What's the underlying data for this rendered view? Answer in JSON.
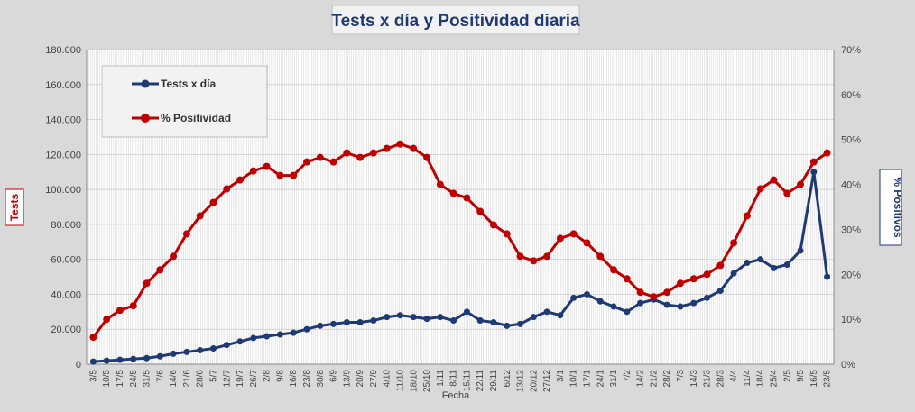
{
  "chart_data": {
    "type": "line",
    "title": "Tests x día y Positividad  diaria",
    "xlabel": "Fecha",
    "ylabel_left": "Tests",
    "ylabel_right": "% Positivos",
    "ylim_left": [
      0,
      180000
    ],
    "ylim_right": [
      0,
      70
    ],
    "y_ticks_left": [
      "0",
      "20.000",
      "40.000",
      "60.000",
      "80.000",
      "100.000",
      "120.000",
      "140.000",
      "160.000",
      "180.000"
    ],
    "y_ticks_right": [
      "0%",
      "10%",
      "20%",
      "30%",
      "40%",
      "50%",
      "60%",
      "70%"
    ],
    "x_tick_labels": [
      "3/5",
      "10/5",
      "17/5",
      "24/5",
      "31/5",
      "7/6",
      "14/6",
      "21/6",
      "28/6",
      "5/7",
      "12/7",
      "19/7",
      "26/7",
      "2/8",
      "9/8",
      "16/8",
      "23/8",
      "30/8",
      "6/9",
      "13/9",
      "20/9",
      "27/9",
      "4/10",
      "11/10",
      "18/10",
      "25/10",
      "1/11",
      "8/11",
      "15/11",
      "22/11",
      "29/11",
      "6/12",
      "13/12",
      "20/12",
      "27/12",
      "3/1",
      "10/1",
      "17/1",
      "24/1",
      "31/1",
      "7/2",
      "14/2",
      "21/2",
      "28/2",
      "7/3",
      "14/3",
      "21/3",
      "28/3",
      "4/4",
      "11/4",
      "18/4",
      "25/4",
      "2/5",
      "9/5",
      "16/5",
      "23/5"
    ],
    "legend_placement": "top-left",
    "grid": true,
    "series": [
      {
        "name": "Tests x día",
        "axis": "left",
        "color": "#1f3a73",
        "x": [
          "3/5",
          "10/5",
          "17/5",
          "24/5",
          "31/5",
          "7/6",
          "14/6",
          "21/6",
          "28/6",
          "5/7",
          "12/7",
          "19/7",
          "26/7",
          "2/8",
          "9/8",
          "16/8",
          "23/8",
          "30/8",
          "6/9",
          "13/9",
          "20/9",
          "27/9",
          "4/10",
          "11/10",
          "18/10",
          "25/10",
          "1/11",
          "8/11",
          "15/11",
          "22/11",
          "29/11",
          "6/12",
          "13/12",
          "20/12",
          "27/12",
          "3/1",
          "10/1",
          "17/1",
          "24/1",
          "31/1",
          "7/2",
          "14/2",
          "21/2",
          "28/2",
          "7/3",
          "14/3",
          "21/3",
          "28/3",
          "4/4",
          "11/4",
          "18/4",
          "25/4",
          "2/5",
          "9/5",
          "16/5",
          "23/5"
        ],
        "values": [
          1500,
          2000,
          2500,
          3000,
          3500,
          4500,
          6000,
          7000,
          8000,
          9000,
          11000,
          13000,
          15000,
          16000,
          17000,
          18000,
          20000,
          22000,
          23000,
          24000,
          24000,
          25000,
          27000,
          28000,
          27000,
          26000,
          27000,
          25000,
          30000,
          25000,
          24000,
          22000,
          23000,
          27000,
          30000,
          28000,
          38000,
          40000,
          36000,
          33000,
          30000,
          35000,
          37000,
          34000,
          33000,
          35000,
          38000,
          42000,
          52000,
          58000,
          60000,
          55000,
          57000,
          65000,
          110000,
          50000
        ]
      },
      {
        "name": "% Positividad",
        "axis": "right",
        "color": "#c00000",
        "x": [
          "3/5",
          "10/5",
          "17/5",
          "24/5",
          "31/5",
          "7/6",
          "14/6",
          "21/6",
          "28/6",
          "5/7",
          "12/7",
          "19/7",
          "26/7",
          "2/8",
          "9/8",
          "16/8",
          "23/8",
          "30/8",
          "6/9",
          "13/9",
          "20/9",
          "27/9",
          "4/10",
          "11/10",
          "18/10",
          "25/10",
          "1/11",
          "8/11",
          "15/11",
          "22/11",
          "29/11",
          "6/12",
          "13/12",
          "20/12",
          "27/12",
          "3/1",
          "10/1",
          "17/1",
          "24/1",
          "31/1",
          "7/2",
          "14/2",
          "21/2",
          "28/2",
          "7/3",
          "14/3",
          "21/3",
          "28/3",
          "4/4",
          "11/4",
          "18/4",
          "25/4",
          "2/5",
          "9/5",
          "16/5",
          "23/5"
        ],
        "values": [
          6,
          10,
          12,
          13,
          18,
          21,
          24,
          29,
          33,
          36,
          39,
          41,
          43,
          44,
          42,
          42,
          45,
          46,
          45,
          47,
          46,
          47,
          48,
          49,
          48,
          46,
          40,
          38,
          37,
          34,
          31,
          29,
          24,
          23,
          24,
          28,
          29,
          27,
          24,
          21,
          19,
          16,
          15,
          16,
          18,
          19,
          20,
          22,
          27,
          33,
          39,
          41,
          38,
          40,
          45,
          47
        ]
      }
    ]
  }
}
